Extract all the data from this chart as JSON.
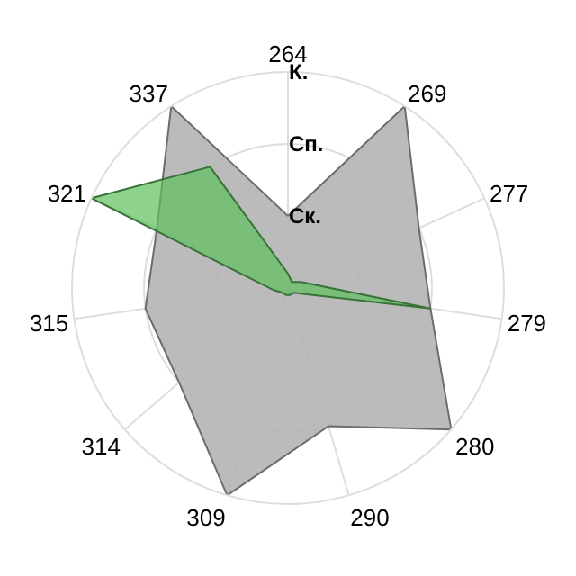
{
  "chart_data": {
    "type": "radar",
    "categories": [
      "264",
      "269",
      "277",
      "279",
      "280",
      "290",
      "309",
      "314",
      "315",
      "321",
      "337"
    ],
    "series": [
      {
        "color": "#b4b4b4",
        "values": [
          1,
          3,
          2,
          2,
          3,
          2,
          3,
          2,
          2,
          2,
          3
        ]
      },
      {
        "color": "#5cbf5c",
        "values": [
          0.2,
          0.1,
          0.2,
          2,
          0.1,
          0.1,
          0.1,
          0.1,
          0.2,
          3,
          2
        ]
      }
    ],
    "ylim": [
      0,
      3
    ],
    "yticks": [
      {
        "value": 1,
        "label": "Ск."
      },
      {
        "value": 2,
        "label": "Сп."
      },
      {
        "value": 3,
        "label": "К."
      }
    ],
    "grid": true
  }
}
